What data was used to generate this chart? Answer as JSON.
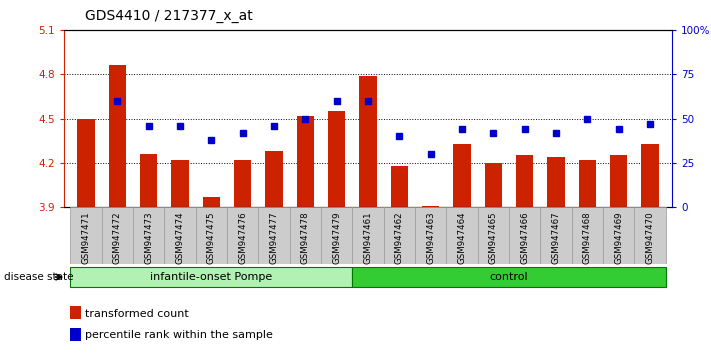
{
  "title": "GDS4410 / 217377_x_at",
  "samples": [
    "GSM947471",
    "GSM947472",
    "GSM947473",
    "GSM947474",
    "GSM947475",
    "GSM947476",
    "GSM947477",
    "GSM947478",
    "GSM947479",
    "GSM947461",
    "GSM947462",
    "GSM947463",
    "GSM947464",
    "GSM947465",
    "GSM947466",
    "GSM947467",
    "GSM947468",
    "GSM947469",
    "GSM947470"
  ],
  "red_values": [
    4.5,
    4.86,
    4.26,
    4.22,
    3.97,
    4.22,
    4.28,
    4.52,
    4.55,
    4.79,
    4.18,
    3.91,
    4.33,
    4.2,
    4.25,
    4.24,
    4.22,
    4.25,
    4.33
  ],
  "blue_values": [
    null,
    60,
    46,
    46,
    38,
    42,
    46,
    50,
    60,
    60,
    40,
    30,
    44,
    42,
    44,
    42,
    50,
    44,
    47
  ],
  "groups": [
    {
      "label": "infantile-onset Pompe",
      "start": 0,
      "end": 9,
      "color": "#b3f0b3"
    },
    {
      "label": "control",
      "start": 9,
      "end": 19,
      "color": "#33cc33"
    }
  ],
  "ylim_left": [
    3.9,
    5.1
  ],
  "ylim_right": [
    0,
    100
  ],
  "yticks_left": [
    3.9,
    4.2,
    4.5,
    4.8,
    5.1
  ],
  "yticks_right": [
    0,
    25,
    50,
    75,
    100
  ],
  "ytick_labels_right": [
    "0",
    "25",
    "50",
    "75",
    "100%"
  ],
  "grid_values": [
    4.2,
    4.5,
    4.8
  ],
  "bar_color": "#CC2200",
  "dot_color": "#0000CC",
  "bar_bottom": 3.9,
  "disease_state_label": "disease state",
  "legend_items": [
    {
      "color": "#CC2200",
      "label": "transformed count"
    },
    {
      "color": "#0000CC",
      "label": "percentile rank within the sample"
    }
  ],
  "tick_bg": "#cccccc"
}
